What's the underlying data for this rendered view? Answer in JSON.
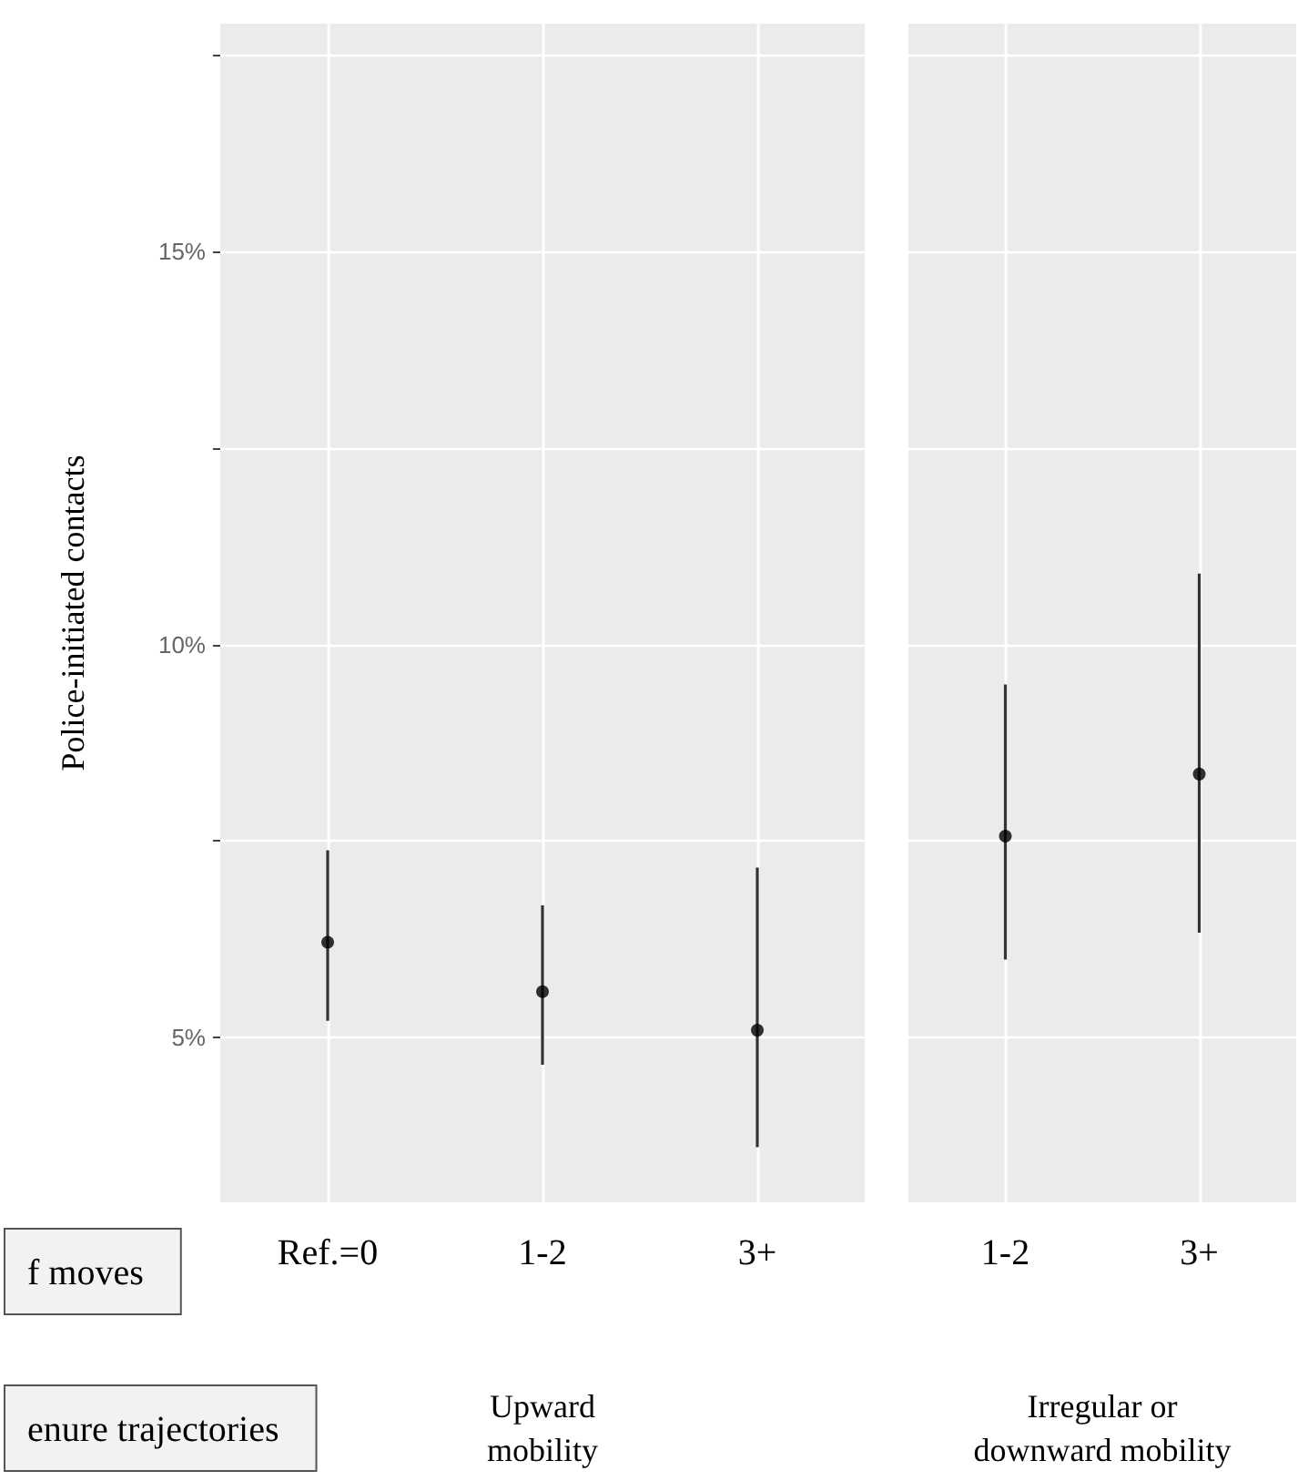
{
  "chart_data": [
    {
      "type": "scatter",
      "ylabel": "Police-initiated contacts",
      "xlabel": "Upward\nmobility",
      "categories": [
        "Ref.=0",
        "1-2",
        "3+"
      ],
      "values": [
        6.21,
        5.58,
        5.09
      ],
      "errors": [
        [
          5.21,
          7.38
        ],
        [
          4.65,
          6.68
        ],
        [
          3.6,
          7.16
        ]
      ],
      "color": "#000000",
      "marker": "circle",
      "grid": true,
      "ylim": [
        2.9,
        17.9
      ],
      "yticks": [
        {
          "value": 5,
          "label": "5%"
        },
        {
          "value": 7.5,
          "label": null
        },
        {
          "value": 10,
          "label": "10%"
        },
        {
          "value": 12.5,
          "label": null
        },
        {
          "value": 15,
          "label": "15%"
        },
        {
          "value": 17.5,
          "label": null
        }
      ],
      "annotations": [
        "f moves",
        "enure trajectories"
      ]
    },
    {
      "type": "scatter",
      "xlabel": "Irregular or\ndownward mobility",
      "categories": [
        "1-2",
        "3+"
      ],
      "values": [
        7.56,
        8.35
      ],
      "errors": [
        [
          5.99,
          9.49
        ],
        [
          6.33,
          10.9
        ]
      ],
      "color": "#000000",
      "marker": "circle",
      "grid": true,
      "ylim": [
        2.9,
        17.9
      ],
      "tick_labels": "x",
      "yticks": [
        5,
        7.5,
        10,
        12.5,
        15,
        17.5
      ]
    }
  ]
}
